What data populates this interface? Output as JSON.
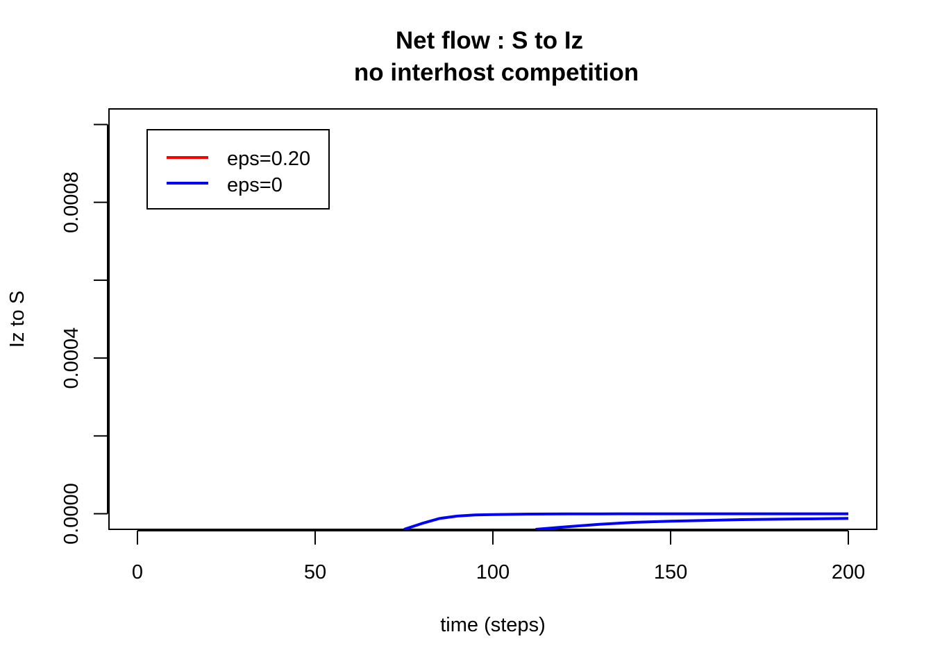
{
  "chart_data": {
    "type": "line",
    "title": "Net flow : S to Iz",
    "subtitle": "no interhost competition",
    "xlabel": "time (steps)",
    "ylabel": "Iz to S",
    "xlim": [
      -8,
      208
    ],
    "ylim": [
      -4e-05,
      0.00104
    ],
    "x_ticks": [
      0,
      50,
      100,
      150,
      200
    ],
    "x_tick_labels": [
      "0",
      "50",
      "100",
      "150",
      "200"
    ],
    "y_ticks": [
      0,
      0.0002,
      0.0004,
      0.0006,
      0.0008,
      0.001
    ],
    "y_tick_labels": [
      "0.0000",
      "",
      "0.0004",
      "",
      "0.0008",
      ""
    ],
    "grid": false,
    "legend": {
      "position": "top-left",
      "entries": [
        {
          "label": "eps=0.20",
          "color": "#ff0000"
        },
        {
          "label": "eps=0",
          "color": "#0000ff"
        }
      ]
    },
    "series": [
      {
        "name": "eps=0",
        "color": "#0000ff",
        "x": [
          75,
          80,
          85,
          90,
          95,
          100,
          110,
          120,
          130,
          140,
          150,
          160,
          170,
          180,
          190,
          200
        ],
        "y": [
          -4e-05,
          -2.5e-05,
          -1.2e-05,
          -6e-06,
          -3e-06,
          -2e-06,
          -8e-07,
          -4e-07,
          -2e-07,
          -1e-07,
          0,
          0,
          0,
          0,
          0,
          0
        ]
      },
      {
        "name": "eps=0",
        "color": "#0000ff",
        "x": [
          112,
          120,
          130,
          140,
          150,
          160,
          170,
          180,
          190,
          200
        ],
        "y": [
          -4e-05,
          -3.4e-05,
          -2.7e-05,
          -2.2e-05,
          -1.9e-05,
          -1.7e-05,
          -1.5e-05,
          -1.4e-05,
          -1.3e-05,
          -1.2e-05
        ]
      }
    ]
  }
}
